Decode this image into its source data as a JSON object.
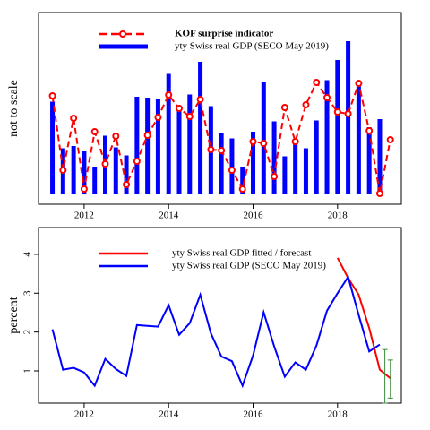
{
  "chart_data": [
    {
      "type": "bar",
      "ylabel": "not to scale",
      "xlim": [
        2010.92,
        2019.51
      ],
      "xticks": [
        2012,
        2014,
        2016,
        2018
      ],
      "ylim": [
        -0.22,
        4.06
      ],
      "series": [
        {
          "name": "KOF surprise indicator",
          "type": "line",
          "color": "#ff0000",
          "dashed": true,
          "marker": "circle",
          "x": [
            2011.25,
            2011.5,
            2011.75,
            2012.0,
            2012.25,
            2012.5,
            2012.75,
            2013.0,
            2013.25,
            2013.5,
            2013.75,
            2014.0,
            2014.25,
            2014.5,
            2014.75,
            2015.0,
            2015.25,
            2015.5,
            2015.75,
            2016.0,
            2016.25,
            2016.5,
            2016.75,
            2017.0,
            2017.25,
            2017.5,
            2017.75,
            2018.0,
            2018.25,
            2018.5,
            2018.75,
            2019.0,
            2019.25
          ],
          "values": [
            2.2,
            0.54,
            1.7,
            0.12,
            1.4,
            0.68,
            1.3,
            0.22,
            0.74,
            1.32,
            1.72,
            2.22,
            1.92,
            1.74,
            2.12,
            1.0,
            0.98,
            0.54,
            0.12,
            1.18,
            1.14,
            0.4,
            1.94,
            1.18,
            2.0,
            2.5,
            2.16,
            1.84,
            1.8,
            2.48,
            1.42,
            0.02,
            1.22
          ]
        },
        {
          "name": "yty Swiss real GDP (SECO May 2019)",
          "type": "bar",
          "color": "#0000ff",
          "x": [
            2011.25,
            2011.5,
            2011.75,
            2012.0,
            2012.25,
            2012.5,
            2012.75,
            2013.0,
            2013.25,
            2013.5,
            2013.75,
            2014.0,
            2014.25,
            2014.5,
            2014.75,
            2015.0,
            2015.25,
            2015.5,
            2015.75,
            2016.0,
            2016.25,
            2016.5,
            2016.75,
            2017.0,
            2017.25,
            2017.5,
            2017.75,
            2018.0,
            2018.25,
            2018.5,
            2018.75,
            2019.0
          ],
          "values": [
            2.07,
            1.03,
            1.08,
            0.96,
            0.62,
            1.31,
            1.05,
            0.87,
            2.18,
            2.16,
            2.14,
            2.69,
            1.93,
            2.23,
            2.96,
            1.97,
            1.37,
            1.25,
            0.62,
            1.4,
            2.51,
            1.63,
            0.85,
            1.22,
            1.03,
            1.65,
            2.55,
            3.0,
            3.42,
            2.44,
            1.5,
            1.68
          ]
        }
      ]
    },
    {
      "type": "line",
      "ylabel": "percent",
      "xlim": [
        2010.92,
        2019.51
      ],
      "xticks": [
        2012,
        2014,
        2016,
        2018
      ],
      "ylim": [
        0.17,
        4.69
      ],
      "yticks": [
        1,
        2,
        3,
        4
      ],
      "series": [
        {
          "name": "yty Swiss real GDP fitted / forecast",
          "type": "line",
          "color": "#ff0000",
          "x": [
            2018.0,
            2018.25,
            2018.5,
            2018.75,
            2019.0,
            2019.25
          ],
          "values": [
            3.91,
            3.39,
            2.96,
            2.1,
            1.03,
            0.81
          ]
        },
        {
          "name": "yty Swiss real GDP (SECO May 2019)",
          "type": "line",
          "color": "#0000ff",
          "x": [
            2011.25,
            2011.5,
            2011.75,
            2012.0,
            2012.25,
            2012.5,
            2012.75,
            2013.0,
            2013.25,
            2013.5,
            2013.75,
            2014.0,
            2014.25,
            2014.5,
            2014.75,
            2015.0,
            2015.25,
            2015.5,
            2015.75,
            2016.0,
            2016.25,
            2016.5,
            2016.75,
            2017.0,
            2017.25,
            2017.5,
            2017.75,
            2018.0,
            2018.25,
            2018.5,
            2018.75,
            2019.0
          ],
          "values": [
            2.07,
            1.03,
            1.08,
            0.96,
            0.62,
            1.31,
            1.05,
            0.87,
            2.18,
            2.16,
            2.14,
            2.69,
            1.93,
            2.23,
            2.96,
            1.97,
            1.37,
            1.25,
            0.62,
            1.4,
            2.51,
            1.63,
            0.85,
            1.22,
            1.03,
            1.65,
            2.55,
            3.0,
            3.42,
            2.44,
            1.5,
            1.68
          ]
        }
      ],
      "intervals": [
        {
          "x": 2019.12,
          "low": 0.17,
          "high": 1.55,
          "color": "#3a8a3a"
        },
        {
          "x": 2019.25,
          "low": 0.3,
          "high": 1.28,
          "color": "#3a8a3a"
        }
      ]
    }
  ]
}
